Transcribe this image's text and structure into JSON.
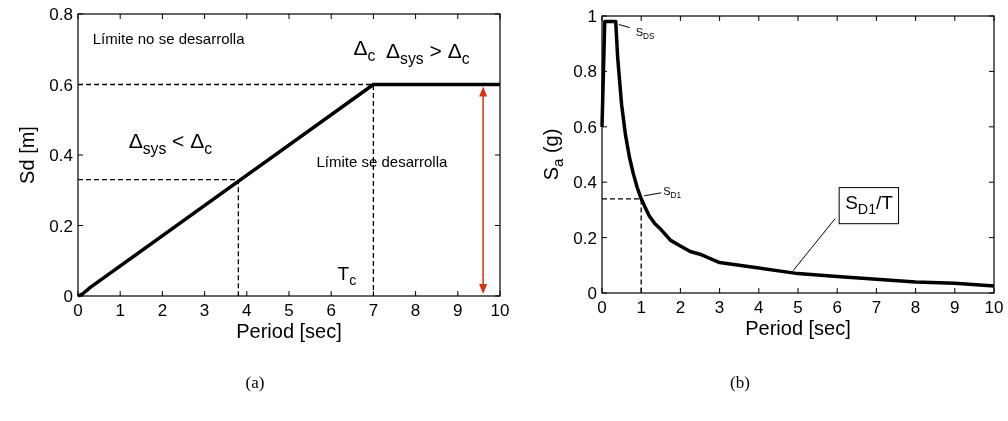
{
  "chart_data": [
    {
      "type": "line",
      "xlabel": "Period [sec]",
      "ylabel": "Sd [m]",
      "xlim": [
        0,
        10
      ],
      "ylim": [
        0,
        0.8
      ],
      "xticks": [
        0,
        1,
        2,
        3,
        4,
        5,
        6,
        7,
        8,
        9,
        10
      ],
      "yticks": [
        0,
        0.2,
        0.4,
        0.6,
        0.8
      ],
      "series": [
        {
          "color": "#000000",
          "x": [
            0,
            0.1,
            0.3,
            7,
            10
          ],
          "values": [
            0,
            0.005,
            0.025,
            0.6,
            0.6
          ]
        },
        {
          "color": "#000000",
          "line_style": "dashed",
          "x": [
            0,
            3.8,
            3.8
          ],
          "values": [
            0.33,
            0.33,
            0
          ]
        },
        {
          "color": "#000000",
          "line_style": "dashed",
          "x": [
            0,
            7,
            7
          ],
          "values": [
            0.6,
            0.6,
            0
          ]
        }
      ],
      "annotations": [
        "Límite no se desarrolla",
        "Δ$_{sys}$ < Δ$_{c}$",
        {
          "text": "Δ$_{c}$",
          "x": 7,
          "y": 0.6
        },
        "Δ$_{sys}$ > Δ$_{c}$",
        "Límite se desarrolla",
        "T$_{c}$",
        "(a)"
      ]
    },
    {
      "type": "line",
      "xlabel": "Period [sec]",
      "ylabel": "S$_{a}$ (g)",
      "xlim": [
        0,
        10
      ],
      "ylim": [
        0,
        1
      ],
      "xticks": [
        0,
        1,
        2,
        3,
        4,
        5,
        6,
        7,
        8,
        9,
        10
      ],
      "yticks": [
        0,
        0.2,
        0.4,
        0.6,
        0.8,
        1
      ],
      "series": [
        {
          "color": "#000000",
          "x": [
            0,
            0.07,
            0.35,
            0.4,
            0.5,
            0.6,
            0.7,
            0.8,
            0.9,
            1,
            1.1,
            1.2,
            1.35,
            1.5,
            1.75,
            2,
            2.25,
            2.5,
            3,
            3.5,
            4,
            5,
            6,
            7,
            8,
            9,
            10
          ],
          "values": [
            0.6,
            0.98,
            0.98,
            0.85,
            0.68,
            0.57,
            0.49,
            0.43,
            0.38,
            0.34,
            0.31,
            0.28,
            0.25,
            0.23,
            0.19,
            0.17,
            0.15,
            0.14,
            0.11,
            0.1,
            0.09,
            0.07,
            0.06,
            0.05,
            0.04,
            0.035,
            0.025
          ]
        },
        {
          "color": "#000000",
          "line_style": "dashed",
          "x": [
            0,
            1,
            1
          ],
          "values": [
            0.34,
            0.34,
            0
          ]
        }
      ],
      "annotations": [
        {
          "text": "S$_{DS}$",
          "x": 0.35,
          "y": 0.98
        },
        {
          "text": "S$_{D1}$",
          "x": 1,
          "y": 0.34
        },
        {
          "text": "S$_{D1}$/T",
          "x": 4.8,
          "y": 0.07
        },
        "(b)"
      ]
    }
  ]
}
